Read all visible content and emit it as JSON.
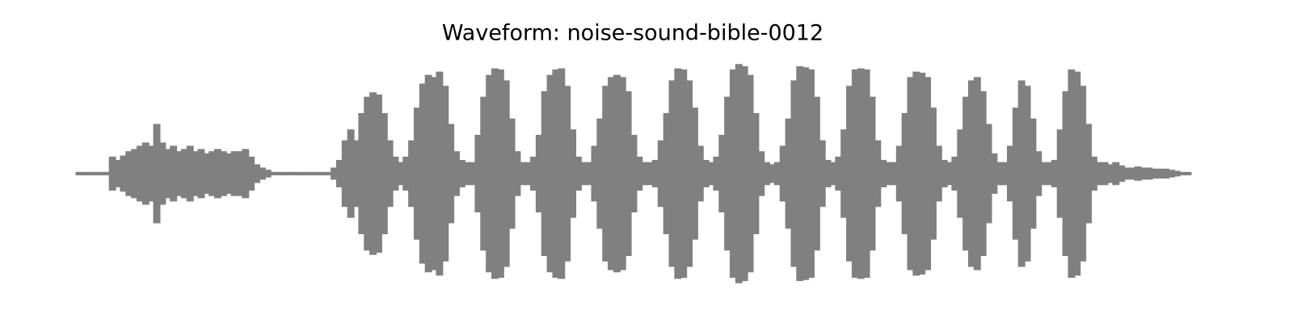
{
  "chart_data": {
    "type": "waveform",
    "title": "Waveform: noise-sound-bible-0012",
    "color": "#808080",
    "xlim": [
      0,
      200
    ],
    "ylim": [
      -1,
      1
    ],
    "x": [
      0,
      1,
      2,
      3,
      4,
      5,
      6,
      7,
      8,
      9,
      10,
      11,
      12,
      13,
      14,
      15,
      16,
      17,
      18,
      19,
      20,
      21,
      22,
      23,
      24,
      25,
      26,
      27,
      28,
      29,
      30,
      31,
      32,
      33,
      34,
      35,
      36,
      37,
      38,
      39,
      40,
      41,
      42,
      43,
      44,
      45,
      46,
      47,
      48,
      49,
      50,
      51,
      52,
      53,
      54,
      55,
      56,
      57,
      58,
      59,
      60,
      61,
      62,
      63,
      64,
      65,
      66,
      67,
      68,
      69,
      70,
      71,
      72,
      73,
      74,
      75,
      76,
      77,
      78,
      79,
      80,
      81,
      82,
      83,
      84,
      85,
      86,
      87,
      88,
      89,
      90,
      91,
      92,
      93,
      94,
      95,
      96,
      97,
      98,
      99,
      100,
      101,
      102,
      103,
      104,
      105,
      106,
      107,
      108,
      109,
      110,
      111,
      112,
      113,
      114,
      115,
      116,
      117,
      118,
      119,
      120,
      121,
      122,
      123,
      124,
      125,
      126,
      127,
      128,
      129,
      130,
      131,
      132,
      133,
      134,
      135,
      136,
      137,
      138,
      139,
      140,
      141,
      142,
      143,
      144,
      145,
      146,
      147,
      148,
      149,
      150,
      151,
      152,
      153,
      154,
      155,
      156,
      157,
      158,
      159,
      160,
      161,
      162,
      163,
      164,
      165,
      166,
      167,
      168,
      169,
      170,
      171,
      172,
      173,
      174,
      175,
      176,
      177,
      178,
      179,
      180,
      181,
      182,
      183,
      184,
      185,
      186,
      187,
      188,
      189,
      190,
      191,
      192,
      193,
      194,
      195,
      196,
      197,
      198,
      199,
      200
    ],
    "values": [
      0.01,
      0.01,
      0.01,
      0.01,
      0.01,
      0.01,
      0.15,
      0.12,
      0.16,
      0.2,
      0.22,
      0.25,
      0.28,
      0.25,
      0.45,
      0.28,
      0.22,
      0.25,
      0.2,
      0.22,
      0.25,
      0.2,
      0.22,
      0.18,
      0.2,
      0.22,
      0.2,
      0.18,
      0.2,
      0.2,
      0.22,
      0.15,
      0.08,
      0.05,
      0.03,
      0.01,
      0.01,
      0.01,
      0.01,
      0.01,
      0.01,
      0.01,
      0.01,
      0.01,
      0.01,
      0.01,
      0.05,
      0.12,
      0.3,
      0.4,
      0.3,
      0.55,
      0.7,
      0.74,
      0.72,
      0.55,
      0.3,
      0.15,
      0.1,
      0.15,
      0.3,
      0.6,
      0.82,
      0.9,
      0.88,
      0.93,
      0.8,
      0.45,
      0.2,
      0.12,
      0.1,
      0.1,
      0.35,
      0.7,
      0.9,
      0.96,
      0.95,
      0.85,
      0.5,
      0.2,
      0.1,
      0.1,
      0.15,
      0.35,
      0.75,
      0.9,
      0.95,
      0.96,
      0.8,
      0.4,
      0.15,
      0.1,
      0.1,
      0.25,
      0.5,
      0.8,
      0.88,
      0.9,
      0.88,
      0.75,
      0.35,
      0.15,
      0.1,
      0.1,
      0.12,
      0.3,
      0.55,
      0.85,
      0.96,
      0.95,
      0.85,
      0.6,
      0.25,
      0.12,
      0.1,
      0.15,
      0.35,
      0.7,
      0.95,
      1.0,
      0.98,
      0.9,
      0.55,
      0.2,
      0.1,
      0.08,
      0.1,
      0.25,
      0.5,
      0.85,
      0.98,
      0.97,
      0.95,
      0.7,
      0.3,
      0.12,
      0.1,
      0.15,
      0.4,
      0.8,
      0.95,
      0.96,
      0.95,
      0.7,
      0.3,
      0.12,
      0.1,
      0.1,
      0.25,
      0.55,
      0.88,
      0.93,
      0.92,
      0.88,
      0.6,
      0.25,
      0.12,
      0.1,
      0.15,
      0.4,
      0.7,
      0.85,
      0.88,
      0.75,
      0.45,
      0.18,
      0.1,
      0.1,
      0.25,
      0.6,
      0.85,
      0.8,
      0.5,
      0.2,
      0.1,
      0.1,
      0.12,
      0.4,
      0.75,
      0.95,
      0.93,
      0.8,
      0.45,
      0.15,
      0.1,
      0.1,
      0.08,
      0.1,
      0.07,
      0.05,
      0.05,
      0.06,
      0.05,
      0.05,
      0.04,
      0.04,
      0.04,
      0.03,
      0.02,
      0.01,
      0.01
    ]
  }
}
